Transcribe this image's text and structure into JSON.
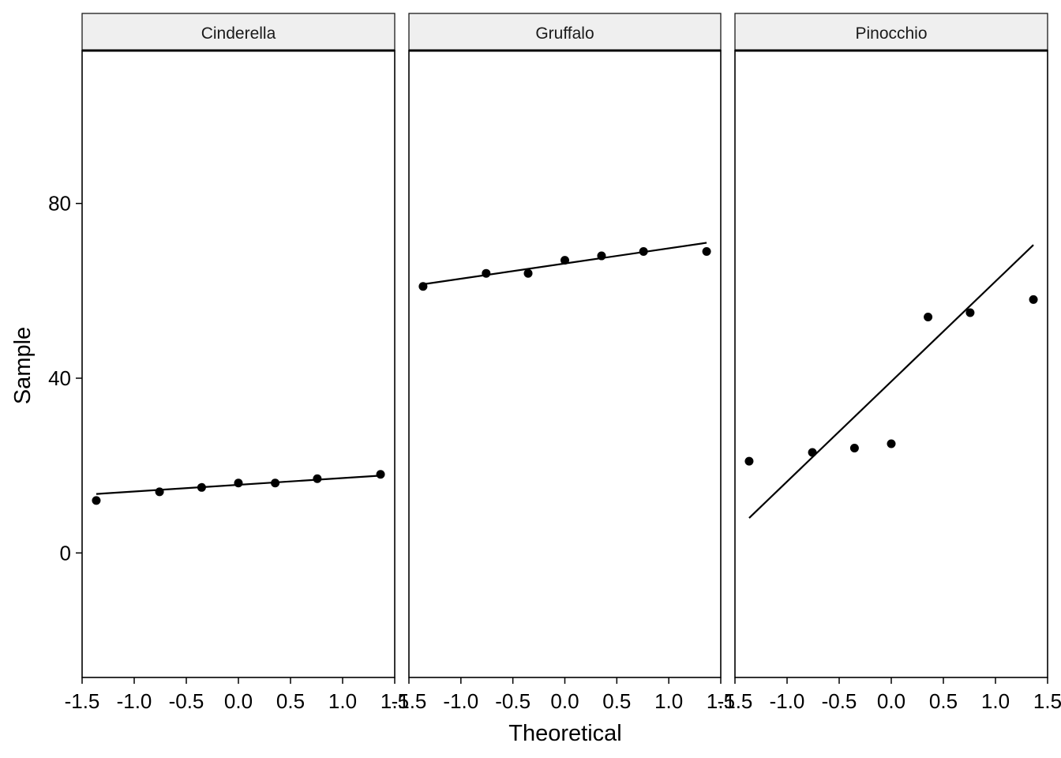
{
  "chart_data": {
    "type": "scatter",
    "facets": [
      "Cinderella",
      "Gruffalo",
      "Pinocchio"
    ],
    "xlabel": "Theoretical",
    "ylabel": "Sample",
    "x_ticks": [
      -1.5,
      -1.0,
      -0.5,
      0.0,
      0.5,
      1.0,
      1.5
    ],
    "x_tick_labels": [
      "-1.5",
      "-1.0",
      "-0.5",
      "0.0",
      "0.5",
      "1.0",
      "1.5"
    ],
    "y_ticks": [
      0,
      40,
      80
    ],
    "y_tick_labels": [
      "0",
      "40",
      "80"
    ],
    "xlim": [
      -1.5,
      1.5
    ],
    "ylim": [
      -28.5,
      115
    ],
    "grid": false,
    "series": [
      {
        "facet": "Cinderella",
        "x": [
          -1.364,
          -0.757,
          -0.353,
          0.0,
          0.353,
          0.757,
          1.364
        ],
        "y": [
          12,
          14,
          15,
          16,
          16,
          17,
          18
        ],
        "line": {
          "x": [
            -1.364,
            1.364
          ],
          "y": [
            13.5,
            17.7
          ]
        }
      },
      {
        "facet": "Gruffalo",
        "x": [
          -1.364,
          -0.757,
          -0.353,
          0.0,
          0.353,
          0.757,
          1.364
        ],
        "y": [
          61,
          64,
          64,
          67,
          68,
          69,
          69
        ],
        "line": {
          "x": [
            -1.364,
            1.364
          ],
          "y": [
            61.5,
            71
          ]
        }
      },
      {
        "facet": "Pinocchio",
        "x": [
          -1.364,
          -0.757,
          -0.353,
          0.0,
          0.353,
          0.757,
          1.364
        ],
        "y": [
          21,
          23,
          24,
          25,
          54,
          55,
          58
        ],
        "line": {
          "x": [
            -1.364,
            1.364
          ],
          "y": [
            8,
            70.5
          ]
        }
      }
    ]
  }
}
